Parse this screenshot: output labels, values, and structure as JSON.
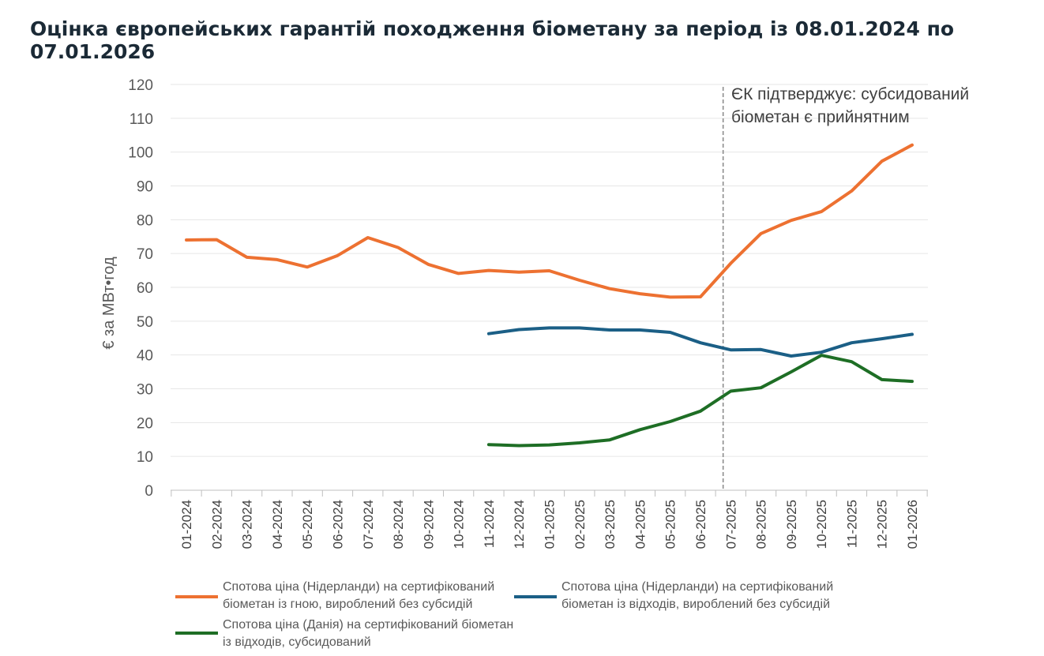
{
  "title": "Оцінка європейських гарантій походження біометану за період із 08.01.2024 по 07.01.2026",
  "annotation": {
    "line1": "ЄК підтверджує: субсидований",
    "line2": "біометан є прийнятним",
    "at_category": "07-2025"
  },
  "chart_data": {
    "type": "line",
    "ylabel": "€ за МВт•год",
    "ylim": [
      0,
      120
    ],
    "yticks": [
      0,
      10,
      20,
      30,
      40,
      50,
      60,
      70,
      80,
      90,
      100,
      110,
      120
    ],
    "grid": true,
    "legend_placement": "bottom",
    "categories": [
      "01-2024",
      "02-2024",
      "03-2024",
      "04-2024",
      "05-2024",
      "06-2024",
      "07-2024",
      "08-2024",
      "09-2024",
      "10-2024",
      "11-2024",
      "12-2024",
      "01-2025",
      "02-2025",
      "03-2025",
      "04-2025",
      "05-2025",
      "06-2025",
      "07-2025",
      "08-2025",
      "09-2025",
      "10-2025",
      "11-2025",
      "12-2025",
      "01-2026"
    ],
    "series": [
      {
        "name": "Спотова ціна (Нідерланди) на сертифікований біометан із гною, вироблений без субсидій",
        "color": "#ed7131",
        "values": [
          74,
          74.1,
          68.9,
          68.2,
          66,
          69.4,
          74.7,
          71.8,
          66.8,
          64.1,
          65,
          64.5,
          64.9,
          62.1,
          59.6,
          58.1,
          57.1,
          57.2,
          67.1,
          75.9,
          79.8,
          82.4,
          88.5,
          97.3,
          102.1
        ]
      },
      {
        "name": "Спотова ціна (Нідерланди) на сертифікований біометан із відходів, вироблений без субсидій",
        "color": "#1b5f86",
        "values": [
          null,
          null,
          null,
          null,
          null,
          null,
          null,
          null,
          null,
          null,
          46.3,
          47.5,
          48.0,
          48.0,
          47.4,
          47.4,
          46.7,
          43.6,
          41.5,
          41.6,
          39.7,
          40.8,
          43.6,
          44.8,
          46.1
        ]
      },
      {
        "name": "Спотова ціна (Данія) на сертифікований біометан із відходів, субсидований",
        "color": "#1e6e25",
        "values": [
          null,
          null,
          null,
          null,
          null,
          null,
          null,
          null,
          null,
          null,
          13.5,
          13.2,
          13.4,
          14.0,
          14.9,
          17.9,
          20.3,
          23.4,
          29.3,
          30.3,
          35.0,
          39.9,
          38.0,
          32.7,
          32.2
        ]
      }
    ]
  },
  "legend": [
    {
      "line1": "Спотова ціна (Нідерланди) на сертифікований",
      "line2": "біометан із гною, вироблений без субсидій"
    },
    {
      "line1": "Спотова ціна (Нідерланди) на сертифікований",
      "line2": "біометан із відходів, вироблений без субсидій"
    },
    {
      "line1": "Спотова ціна (Данія) на сертифікований біометан",
      "line2": "із відходів, субсидований"
    }
  ]
}
